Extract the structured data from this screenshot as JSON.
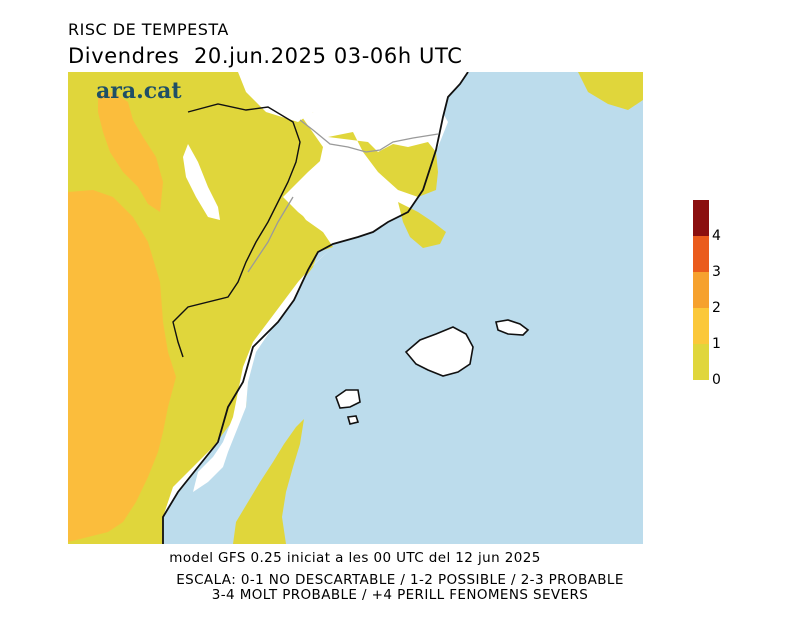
{
  "header": {
    "title": "RISC DE TEMPESTA",
    "date_line": "Divendres  20.jun.2025 03-06h UTC"
  },
  "logo": {
    "text": "ara.cat"
  },
  "legend": {
    "labels": [
      "4",
      "3",
      "2",
      "1",
      "0"
    ],
    "colors": [
      "#8b0f0f",
      "#ea5b1c",
      "#f6a12e",
      "#fbc83a",
      "#e0d63b"
    ]
  },
  "map_colors": {
    "sea": "#bcdcec",
    "risk_0_1": "#e0d63b",
    "risk_1_2": "#fbbd3c",
    "no_risk": "#ffffff",
    "coast": "#111111",
    "border": "#9a9a9a"
  },
  "footer": {
    "line1": "model GFS 0.25 iniciat a les 00 UTC del 12 jun 2025",
    "line2": "ESCALA: 0-1 NO DESCARTABLE / 1-2 POSSIBLE / 2-3 PROBABLE",
    "line3": "3-4 MOLT PROBABLE / +4 PERILL FENOMENS SEVERS"
  }
}
